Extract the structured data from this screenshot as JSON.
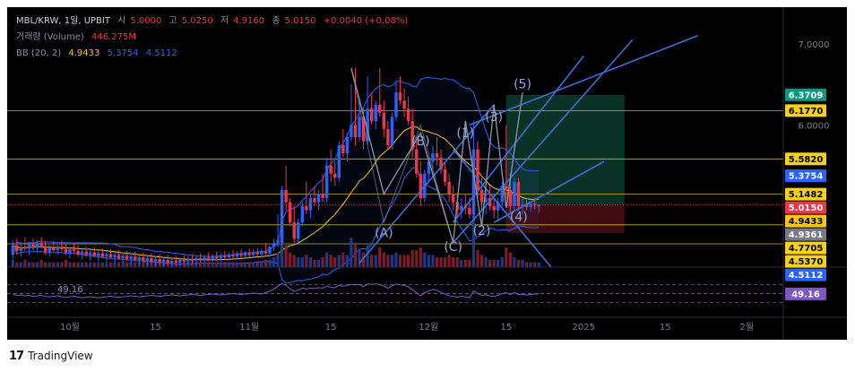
{
  "header": {
    "symbol": "MBL/KRW, 1일, UPBIT",
    "open_label": "시",
    "open": "5.0000",
    "high_label": "고",
    "high": "5.0250",
    "low_label": "저",
    "low": "4.9160",
    "close_label": "종",
    "close": "5.0150",
    "change": "+0.0040 (+0.08%)",
    "volume_label": "거래량 (Volume)",
    "volume": "446.275M",
    "bb_label": "BB (20, 2)",
    "bb_basis": "4.9433",
    "bb_upper": "5.3754",
    "bb_lower": "4.5112"
  },
  "footer": {
    "logo": "17",
    "brand": "TradingView"
  },
  "colors": {
    "background": "#000000",
    "up": "#2962ff",
    "down": "#f23645",
    "bb_basis": "#f5c518",
    "bb_band": "#2962ff",
    "rsi": "#7e57c2",
    "trendline": "#3d6fd8",
    "wave": "#8f96a8",
    "wave_label": "#8ea8d8",
    "target_zone": "#0d3b2e",
    "stop_zone": "#4a0e14"
  },
  "chart_data": {
    "type": "candlestick",
    "title": "",
    "xlabel": "",
    "ylabel": "",
    "x_ticks": [
      "10월",
      "15",
      "11월",
      "15",
      "12월",
      "15",
      "2025",
      "15",
      "2월"
    ],
    "y_ticks": [
      7.0,
      6.0
    ],
    "ylim": [
      4.25,
      7.45
    ],
    "candles": [
      [
        4.4,
        4.58,
        4.35,
        4.52
      ],
      [
        4.52,
        4.6,
        4.4,
        4.45
      ],
      [
        4.45,
        4.55,
        4.38,
        4.5
      ],
      [
        4.5,
        4.62,
        4.45,
        4.48
      ],
      [
        4.48,
        4.55,
        4.4,
        4.53
      ],
      [
        4.53,
        4.6,
        4.46,
        4.49
      ],
      [
        4.49,
        4.58,
        4.42,
        4.55
      ],
      [
        4.55,
        4.62,
        4.48,
        4.5
      ],
      [
        4.5,
        4.56,
        4.4,
        4.44
      ],
      [
        4.44,
        4.52,
        4.38,
        4.49
      ],
      [
        4.49,
        4.57,
        4.44,
        4.46
      ],
      [
        4.46,
        4.53,
        4.4,
        4.5
      ],
      [
        4.5,
        4.58,
        4.45,
        4.47
      ],
      [
        4.47,
        4.54,
        4.4,
        4.43
      ],
      [
        4.43,
        4.5,
        4.36,
        4.47
      ],
      [
        4.47,
        4.55,
        4.41,
        4.45
      ],
      [
        4.45,
        4.52,
        4.38,
        4.41
      ],
      [
        4.41,
        4.48,
        4.35,
        4.44
      ],
      [
        4.44,
        4.5,
        4.38,
        4.4
      ],
      [
        4.4,
        4.47,
        4.33,
        4.43
      ],
      [
        4.43,
        4.49,
        4.37,
        4.39
      ],
      [
        4.39,
        4.46,
        4.32,
        4.42
      ],
      [
        4.42,
        4.48,
        4.36,
        4.38
      ],
      [
        4.38,
        4.45,
        4.31,
        4.41
      ],
      [
        4.41,
        4.47,
        4.35,
        4.37
      ],
      [
        4.37,
        4.44,
        4.3,
        4.4
      ],
      [
        4.4,
        4.46,
        4.34,
        4.36
      ],
      [
        4.36,
        4.43,
        4.3,
        4.39
      ],
      [
        4.39,
        4.45,
        4.33,
        4.35
      ],
      [
        4.35,
        4.42,
        4.29,
        4.38
      ],
      [
        4.38,
        4.44,
        4.32,
        4.34
      ],
      [
        4.34,
        4.4,
        4.28,
        4.37
      ],
      [
        4.37,
        4.43,
        4.31,
        4.33
      ],
      [
        4.33,
        4.39,
        4.27,
        4.36
      ],
      [
        4.36,
        4.42,
        4.3,
        4.32
      ],
      [
        4.32,
        4.38,
        4.26,
        4.35
      ],
      [
        4.35,
        4.41,
        4.29,
        4.31
      ],
      [
        4.31,
        4.37,
        4.26,
        4.34
      ],
      [
        4.34,
        4.4,
        4.28,
        4.3
      ],
      [
        4.3,
        4.36,
        4.26,
        4.33
      ],
      [
        4.33,
        4.39,
        4.28,
        4.31
      ],
      [
        4.31,
        4.37,
        4.27,
        4.34
      ],
      [
        4.34,
        4.4,
        4.29,
        4.32
      ],
      [
        4.32,
        4.38,
        4.28,
        4.35
      ],
      [
        4.35,
        4.41,
        4.3,
        4.33
      ],
      [
        4.33,
        4.39,
        4.29,
        4.36
      ],
      [
        4.36,
        4.42,
        4.31,
        4.34
      ],
      [
        4.34,
        4.4,
        4.3,
        4.37
      ],
      [
        4.37,
        4.43,
        4.32,
        4.35
      ],
      [
        4.35,
        4.41,
        4.31,
        4.38
      ],
      [
        4.38,
        4.44,
        4.33,
        4.36
      ],
      [
        4.36,
        4.42,
        4.32,
        4.39
      ],
      [
        4.39,
        4.45,
        4.34,
        4.37
      ],
      [
        4.37,
        4.43,
        4.33,
        4.4
      ],
      [
        4.4,
        4.46,
        4.35,
        4.38
      ],
      [
        4.38,
        4.44,
        4.34,
        4.41
      ],
      [
        4.41,
        4.47,
        4.36,
        4.39
      ],
      [
        4.39,
        4.45,
        4.35,
        4.42
      ],
      [
        4.42,
        4.48,
        4.37,
        4.4
      ],
      [
        4.4,
        4.47,
        4.36,
        4.43
      ],
      [
        4.43,
        4.49,
        4.38,
        4.41
      ],
      [
        4.41,
        4.48,
        4.37,
        4.44
      ],
      [
        4.44,
        4.55,
        4.4,
        4.42
      ],
      [
        4.42,
        4.52,
        4.38,
        4.5
      ],
      [
        4.5,
        4.6,
        4.45,
        4.55
      ],
      [
        4.55,
        4.9,
        4.5,
        4.58
      ],
      [
        4.55,
        5.25,
        4.5,
        5.2
      ],
      [
        5.2,
        5.5,
        4.95,
        5.05
      ],
      [
        5.05,
        5.1,
        4.75,
        4.8
      ],
      [
        4.8,
        5.0,
        4.55,
        4.6
      ],
      [
        4.6,
        4.85,
        4.55,
        4.8
      ],
      [
        4.8,
        5.05,
        4.75,
        5.0
      ],
      [
        5.0,
        5.3,
        4.9,
        4.95
      ],
      [
        4.95,
        5.15,
        4.85,
        5.1
      ],
      [
        5.1,
        5.25,
        5.0,
        5.05
      ],
      [
        5.05,
        5.2,
        4.95,
        5.15
      ],
      [
        5.15,
        5.4,
        5.05,
        5.1
      ],
      [
        5.1,
        5.6,
        5.05,
        5.5
      ],
      [
        5.5,
        5.7,
        5.3,
        5.4
      ],
      [
        5.4,
        5.55,
        5.25,
        5.35
      ],
      [
        5.35,
        5.8,
        5.3,
        5.75
      ],
      [
        5.75,
        5.95,
        5.6,
        5.65
      ],
      [
        5.65,
        5.9,
        5.55,
        5.85
      ],
      [
        5.85,
        6.5,
        5.8,
        6.0
      ],
      [
        6.0,
        6.7,
        5.75,
        5.85
      ],
      [
        5.85,
        6.3,
        5.8,
        6.1
      ],
      [
        6.1,
        6.2,
        5.7,
        5.8
      ],
      [
        5.8,
        6.6,
        5.75,
        6.2
      ],
      [
        6.2,
        6.4,
        6.0,
        6.05
      ],
      [
        6.05,
        6.3,
        5.95,
        6.25
      ],
      [
        6.25,
        6.7,
        6.1,
        6.15
      ],
      [
        6.15,
        6.3,
        5.85,
        5.95
      ],
      [
        5.95,
        6.05,
        5.7,
        5.75
      ],
      [
        5.75,
        6.15,
        5.7,
        6.1
      ],
      [
        6.1,
        6.55,
        6.05,
        6.4
      ],
      [
        6.4,
        6.6,
        6.25,
        6.3
      ],
      [
        6.3,
        6.45,
        6.1,
        6.2
      ],
      [
        6.2,
        6.35,
        6.0,
        6.05
      ],
      [
        6.05,
        6.2,
        5.6,
        5.7
      ],
      [
        5.7,
        5.85,
        5.35,
        5.4
      ],
      [
        5.4,
        5.55,
        5.0,
        5.1
      ],
      [
        5.1,
        5.45,
        5.05,
        5.4
      ],
      [
        5.4,
        5.6,
        5.3,
        5.55
      ],
      [
        5.55,
        5.75,
        5.45,
        5.65
      ],
      [
        5.65,
        5.85,
        5.5,
        5.6
      ],
      [
        5.6,
        5.7,
        5.4,
        5.45
      ],
      [
        5.45,
        5.55,
        5.25,
        5.3
      ],
      [
        5.3,
        5.4,
        5.05,
        5.15
      ],
      [
        5.15,
        5.25,
        4.95,
        5.05
      ],
      [
        5.05,
        5.15,
        4.85,
        4.95
      ],
      [
        4.95,
        5.1,
        4.85,
        5.0
      ],
      [
        5.0,
        5.15,
        4.9,
        4.98
      ],
      [
        4.98,
        5.1,
        4.85,
        4.9
      ],
      [
        4.9,
        6.05,
        4.85,
        5.7
      ],
      [
        5.7,
        5.8,
        5.1,
        5.2
      ],
      [
        5.2,
        5.35,
        4.95,
        5.05
      ],
      [
        5.05,
        5.2,
        4.9,
        5.1
      ],
      [
        5.1,
        5.25,
        4.95,
        5.0
      ],
      [
        5.0,
        5.15,
        4.85,
        4.95
      ],
      [
        4.95,
        5.1,
        4.8,
        5.05
      ],
      [
        5.05,
        5.3,
        4.95,
        5.25
      ],
      [
        5.25,
        6.0,
        5.1,
        5.2
      ],
      [
        5.2,
        5.4,
        4.9,
        5.0
      ],
      [
        5.0,
        5.35,
        4.95,
        5.3
      ],
      [
        5.3,
        5.35,
        4.95,
        5.0
      ],
      [
        5.0,
        5.1,
        4.9,
        5.02
      ],
      [
        5.02,
        5.08,
        4.95,
        4.99
      ],
      [
        4.99,
        5.05,
        4.93,
        5.03
      ],
      [
        5.03,
        5.1,
        4.96,
        5.01
      ],
      [
        5.0,
        5.025,
        4.916,
        5.015
      ]
    ],
    "volume": [
      3,
      2,
      2,
      3,
      2,
      2,
      2,
      3,
      2,
      2,
      2,
      2,
      2,
      3,
      2,
      2,
      2,
      2,
      2,
      2,
      2,
      2,
      2,
      2,
      2,
      2,
      2,
      2,
      2,
      2,
      2,
      2,
      2,
      2,
      2,
      2,
      2,
      2,
      2,
      2,
      2,
      2,
      2,
      2,
      2,
      2,
      2,
      2,
      2,
      2,
      2,
      2,
      2,
      2,
      2,
      2,
      2,
      2,
      2,
      2,
      2,
      2,
      3,
      3,
      4,
      6,
      14,
      9,
      6,
      5,
      4,
      4,
      5,
      4,
      3,
      3,
      4,
      6,
      5,
      4,
      5,
      6,
      5,
      12,
      10,
      7,
      6,
      9,
      5,
      5,
      8,
      6,
      5,
      5,
      6,
      5,
      5,
      5,
      7,
      7,
      8,
      6,
      5,
      5,
      4,
      4,
      4,
      5,
      4,
      4,
      3,
      3,
      3,
      22,
      7,
      5,
      4,
      3,
      3,
      3,
      4,
      8,
      6,
      4,
      3,
      3,
      2,
      2,
      2,
      2
    ],
    "rsi": {
      "name": "RSI",
      "value": 49.16,
      "levels": [
        70,
        50,
        30
      ],
      "values": [
        48,
        46,
        47,
        45,
        46,
        44,
        45,
        46,
        44,
        43,
        44,
        45,
        43,
        42,
        43,
        44,
        42,
        41,
        42,
        43,
        42,
        41,
        42,
        43,
        44,
        43,
        42,
        43,
        44,
        45,
        44,
        43,
        44,
        45,
        46,
        45,
        44,
        45,
        46,
        47,
        46,
        45,
        46,
        47,
        48,
        47,
        46,
        47,
        48,
        49,
        48,
        47,
        48,
        49,
        50,
        49,
        48,
        49,
        50,
        51,
        50,
        49,
        52,
        55,
        60,
        66,
        72,
        68,
        60,
        55,
        58,
        62,
        60,
        62,
        61,
        63,
        62,
        66,
        64,
        63,
        68,
        66,
        68,
        70,
        69,
        70,
        65,
        71,
        70,
        71,
        70,
        66,
        62,
        67,
        71,
        69,
        68,
        65,
        58,
        52,
        45,
        52,
        56,
        59,
        57,
        53,
        49,
        45,
        44,
        42,
        44,
        43,
        41,
        56,
        50,
        46,
        47,
        45,
        44,
        46,
        50,
        52,
        48,
        52,
        48,
        48,
        47,
        48,
        49,
        49.16
      ]
    },
    "bollinger": {
      "period": 20,
      "stddev": 2,
      "basis": 4.9433,
      "upper": 5.3754,
      "lower": 4.5112
    },
    "price_levels": [
      {
        "value": "6.3709",
        "bg": "#089981",
        "fg": "#ffffff",
        "kind": "target"
      },
      {
        "value": "6.1770",
        "bg": "#f5d11b",
        "fg": "#000000",
        "kind": "level"
      },
      {
        "value": "5.5820",
        "bg": "#f5d11b",
        "fg": "#000000",
        "kind": "level"
      },
      {
        "value": "5.3754",
        "bg": "#2962ff",
        "fg": "#ffffff",
        "kind": "bb-upper"
      },
      {
        "value": "5.1482",
        "bg": "#f5d11b",
        "fg": "#000000",
        "kind": "level"
      },
      {
        "value": "5.0150",
        "bg": "#f23645",
        "fg": "#ffffff",
        "kind": "last-price"
      },
      {
        "value": "4.9433",
        "bg": "#f5c518",
        "fg": "#000000",
        "kind": "bb-basis"
      },
      {
        "value": "4.9361",
        "bg": "#787b86",
        "fg": "#ffffff",
        "kind": "stop"
      },
      {
        "value": "4.7705",
        "bg": "#f5d11b",
        "fg": "#000000",
        "kind": "level"
      },
      {
        "value": "4.5370",
        "bg": "#f5d11b",
        "fg": "#000000",
        "kind": "level"
      },
      {
        "value": "4.5112",
        "bg": "#2962ff",
        "fg": "#ffffff",
        "kind": "bb-lower"
      }
    ],
    "rsi_badge": {
      "value": "49.16",
      "bg": "#7e57c2",
      "fg": "#ffffff"
    },
    "rsi_series_label": "49.16",
    "wave_labels": [
      {
        "text": "(A)",
        "i": 91,
        "price": 4.62,
        "pos": "below"
      },
      {
        "text": "(B)",
        "i": 100,
        "price": 5.75,
        "pos": "above"
      },
      {
        "text": "(C)",
        "i": 108,
        "price": 4.45,
        "pos": "below"
      },
      {
        "text": "(1)",
        "i": 111,
        "price": 5.85,
        "pos": "above"
      },
      {
        "text": "(2)",
        "i": 115,
        "price": 4.65,
        "pos": "below"
      },
      {
        "text": "(3)",
        "i": 118,
        "price": 6.05,
        "pos": "above"
      },
      {
        "text": "(4)",
        "i": 121,
        "price": 4.82,
        "pos": "right"
      },
      {
        "text": "(5)",
        "i": 125,
        "price": 6.45,
        "pos": "above"
      }
    ],
    "wave_path": [
      {
        "i": 83,
        "price": 6.7
      },
      {
        "i": 91,
        "price": 5.15
      },
      {
        "i": 100,
        "price": 5.9
      },
      {
        "i": 108,
        "price": 4.55
      },
      {
        "i": 111,
        "price": 6.05
      },
      {
        "i": 115,
        "price": 4.75
      },
      {
        "i": 118,
        "price": 6.25
      },
      {
        "i": 121,
        "price": 4.98
      },
      {
        "i": 125,
        "price": 6.4
      }
    ],
    "abc_path": [
      {
        "i": 83,
        "price": 6.7
      },
      {
        "i": 91,
        "price": 4.8
      },
      {
        "i": 100,
        "price": 6.0
      },
      {
        "i": 108,
        "price": 4.55
      }
    ],
    "trendlines": [
      {
        "from": {
          "i": 108,
          "price": 4.8
        },
        "to": {
          "i": 140,
          "price": 6.85
        }
      },
      {
        "from": {
          "i": 108,
          "price": 4.55
        },
        "to": {
          "i": 152,
          "price": 7.05
        }
      },
      {
        "from": {
          "i": 112,
          "price": 6.0
        },
        "to": {
          "i": 168,
          "price": 7.1
        }
      },
      {
        "from": {
          "i": 118,
          "price": 4.8
        },
        "to": {
          "i": 145,
          "price": 5.55
        }
      },
      {
        "from": {
          "i": 85,
          "price": 4.3
        },
        "to": {
          "i": 118,
          "price": 6.25
        }
      },
      {
        "from": {
          "i": 108,
          "price": 5.7
        },
        "to": {
          "i": 132,
          "price": 4.25
        }
      }
    ],
    "target_zone": {
      "from_i": 121,
      "to_i": 150,
      "top": 6.3709,
      "bottom": 5.015
    },
    "stop_zone": {
      "from_i": 121,
      "to_i": 150,
      "top": 5.015,
      "bottom": 4.67
    }
  }
}
